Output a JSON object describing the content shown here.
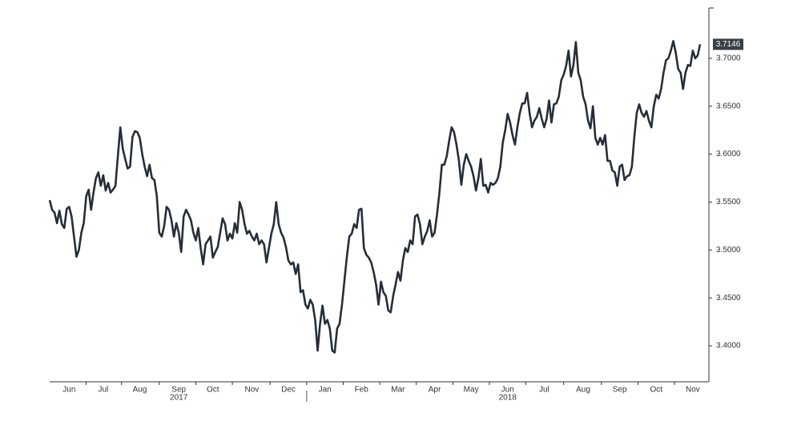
{
  "chart_data": {
    "type": "line",
    "color": "#262e38",
    "grid": false,
    "categories": [
      null,
      null,
      null,
      null,
      null,
      null,
      null,
      null,
      "Jun",
      null,
      null,
      null,
      null,
      null,
      null,
      null,
      null,
      null,
      null,
      null,
      null,
      null,
      "Jul",
      null,
      null,
      null,
      null,
      null,
      null,
      null,
      null,
      null,
      null,
      null,
      null,
      null,
      null,
      "Aug",
      null,
      null,
      null,
      null,
      null,
      null,
      null,
      null,
      null,
      null,
      null,
      null,
      null,
      null,
      null,
      "Sep",
      null,
      null,
      null,
      null,
      null,
      null,
      null,
      null,
      null,
      null,
      null,
      null,
      null,
      "Oct",
      null,
      null,
      null,
      null,
      null,
      null,
      null,
      null,
      null,
      null,
      null,
      null,
      null,
      null,
      null,
      "Nov",
      null,
      null,
      null,
      null,
      null,
      null,
      null,
      null,
      null,
      null,
      null,
      null,
      null,
      null,
      "Dec",
      null,
      null,
      null,
      null,
      null,
      null,
      null,
      null,
      null,
      null,
      null,
      null,
      null,
      null,
      "Jan",
      null,
      null,
      null,
      null,
      null,
      null,
      null,
      null,
      null,
      null,
      null,
      null,
      null,
      null,
      "Feb",
      null,
      null,
      null,
      null,
      null,
      null,
      null,
      null,
      null,
      null,
      null,
      null,
      null,
      null,
      "Mar",
      null,
      null,
      null,
      null,
      null,
      null,
      null,
      null,
      null,
      null,
      null,
      null,
      null,
      null,
      "Apr",
      null,
      null,
      null,
      null,
      null,
      null,
      null,
      null,
      null,
      null,
      null,
      null,
      null,
      null,
      "May",
      null,
      null,
      null,
      null,
      null,
      null,
      null,
      null,
      null,
      null,
      null,
      null,
      null,
      null,
      "Jun",
      null,
      null,
      null,
      null,
      null,
      null,
      null,
      null,
      null,
      null,
      null,
      null,
      null,
      null,
      "Jul",
      null,
      null,
      null,
      null,
      null,
      null,
      null,
      null,
      null,
      null,
      null,
      null,
      null,
      null,
      null,
      "Aug",
      null,
      null,
      null,
      null,
      null,
      null,
      null,
      null,
      null,
      null,
      null,
      null,
      null,
      null,
      "Sep",
      null,
      null,
      null,
      null,
      null,
      null,
      null,
      null,
      null,
      null,
      null,
      null,
      null,
      null,
      "Oct",
      null,
      null,
      null,
      null,
      null,
      null,
      null,
      null,
      null,
      null,
      null,
      null,
      null,
      null,
      "Nov",
      null,
      null,
      null
    ],
    "x_year_labels": [
      {
        "index": 53,
        "label": "2017"
      },
      {
        "index": 188,
        "label": "2018"
      }
    ],
    "values": [
      3.552,
      3.542,
      3.539,
      3.528,
      3.541,
      3.527,
      3.523,
      3.543,
      3.545,
      3.535,
      3.514,
      3.493,
      3.5,
      3.518,
      3.528,
      3.556,
      3.563,
      3.542,
      3.56,
      3.575,
      3.581,
      3.567,
      3.578,
      3.562,
      3.57,
      3.56,
      3.563,
      3.567,
      3.598,
      3.628,
      3.606,
      3.595,
      3.585,
      3.587,
      3.618,
      3.624,
      3.623,
      3.617,
      3.6,
      3.587,
      3.577,
      3.589,
      3.575,
      3.573,
      3.556,
      3.518,
      3.514,
      3.525,
      3.545,
      3.542,
      3.531,
      3.514,
      3.528,
      3.518,
      3.498,
      3.535,
      3.542,
      3.537,
      3.531,
      3.518,
      3.51,
      3.523,
      3.502,
      3.485,
      3.506,
      3.51,
      3.514,
      3.492,
      3.498,
      3.503,
      3.518,
      3.533,
      3.527,
      3.51,
      3.517,
      3.512,
      3.528,
      3.518,
      3.55,
      3.542,
      3.527,
      3.517,
      3.52,
      3.514,
      3.51,
      3.517,
      3.506,
      3.51,
      3.506,
      3.487,
      3.502,
      3.517,
      3.527,
      3.55,
      3.527,
      3.518,
      3.513,
      3.503,
      3.489,
      3.485,
      3.487,
      3.475,
      3.485,
      3.456,
      3.458,
      3.443,
      3.439,
      3.448,
      3.443,
      3.427,
      3.395,
      3.423,
      3.442,
      3.423,
      3.427,
      3.418,
      3.395,
      3.393,
      3.418,
      3.423,
      3.443,
      3.468,
      3.493,
      3.514,
      3.517,
      3.527,
      3.523,
      3.542,
      3.543,
      3.502,
      3.495,
      3.492,
      3.487,
      3.477,
      3.464,
      3.443,
      3.467,
      3.456,
      3.452,
      3.437,
      3.435,
      3.452,
      3.464,
      3.477,
      3.468,
      3.489,
      3.502,
      3.498,
      3.51,
      3.506,
      3.535,
      3.537,
      3.527,
      3.506,
      3.514,
      3.52,
      3.531,
      3.514,
      3.518,
      3.537,
      3.56,
      3.589,
      3.589,
      3.598,
      3.614,
      3.628,
      3.623,
      3.61,
      3.593,
      3.568,
      3.589,
      3.6,
      3.593,
      3.587,
      3.577,
      3.562,
      3.575,
      3.595,
      3.567,
      3.568,
      3.56,
      3.57,
      3.568,
      3.57,
      3.575,
      3.587,
      3.612,
      3.625,
      3.642,
      3.633,
      3.62,
      3.61,
      3.628,
      3.643,
      3.653,
      3.653,
      3.664,
      3.643,
      3.628,
      3.635,
      3.639,
      3.648,
      3.637,
      3.628,
      3.637,
      3.656,
      3.633,
      3.652,
      3.653,
      3.66,
      3.677,
      3.683,
      3.692,
      3.708,
      3.681,
      3.693,
      3.717,
      3.685,
      3.677,
      3.66,
      3.652,
      3.635,
      3.627,
      3.65,
      3.617,
      3.61,
      3.617,
      3.61,
      3.62,
      3.593,
      3.593,
      3.583,
      3.581,
      3.567,
      3.587,
      3.589,
      3.573,
      3.577,
      3.578,
      3.587,
      3.618,
      3.643,
      3.652,
      3.643,
      3.639,
      3.645,
      3.635,
      3.628,
      3.65,
      3.662,
      3.658,
      3.668,
      3.685,
      3.698,
      3.7,
      3.708,
      3.718,
      3.706,
      3.689,
      3.685,
      3.668,
      3.685,
      3.693,
      3.692,
      3.708,
      3.7,
      3.703,
      3.7146
    ],
    "ylim": [
      3.3625,
      3.7525
    ],
    "yticks": [
      {
        "value": 3.4,
        "label": "3.4000"
      },
      {
        "value": 3.45,
        "label": "3.4500"
      },
      {
        "value": 3.5,
        "label": "3.5000"
      },
      {
        "value": 3.55,
        "label": "3.5500"
      },
      {
        "value": 3.6,
        "label": "3.6000"
      },
      {
        "value": 3.65,
        "label": "3.6500"
      },
      {
        "value": 3.7,
        "label": "3.7000"
      }
    ]
  }
}
